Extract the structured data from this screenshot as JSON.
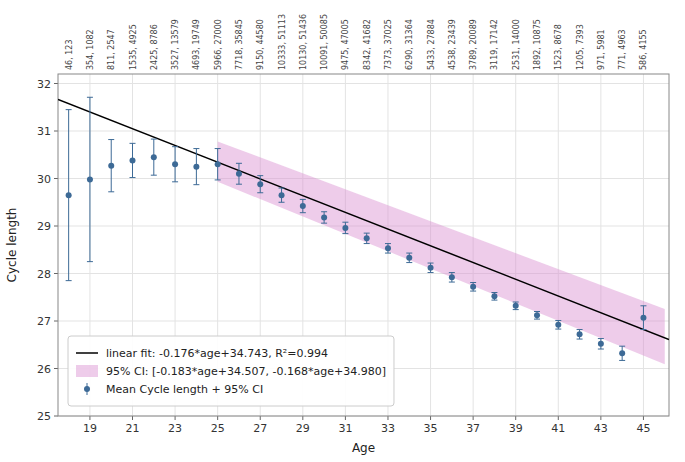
{
  "chart_data": {
    "type": "errorbar",
    "x_label": "Age",
    "y_label": "Cycle length",
    "xlim": [
      17.5,
      46.2
    ],
    "ylim": [
      25.0,
      32.2
    ],
    "xticks": [
      19,
      21,
      23,
      25,
      27,
      29,
      31,
      33,
      35,
      37,
      39,
      41,
      43,
      45
    ],
    "yticks": [
      25,
      26,
      27,
      28,
      29,
      30,
      31,
      32
    ],
    "grid": true,
    "legend": "lower left",
    "series": [
      {
        "name": "linear fit: -0.176*age+34.743, R²=0.994",
        "type": "line",
        "color": "#000000",
        "x": [
          17.5,
          46.2
        ],
        "values": [
          31.663,
          26.6118
        ]
      },
      {
        "name": "95% CI: [-0.183*age+34.507, -0.168*age+34.980]",
        "type": "area",
        "color": "#da8fd0",
        "x": [
          25.0,
          46.0
        ],
        "lower": [
          29.932,
          26.089
        ],
        "upper": [
          30.78,
          27.252
        ]
      },
      {
        "name": "Mean Cycle length + 95% CI",
        "type": "errorbar",
        "color": "#3d6a96",
        "marker": "circle",
        "x": [
          18,
          19,
          20,
          21,
          22,
          23,
          24,
          25,
          26,
          27,
          28,
          29,
          30,
          31,
          32,
          33,
          34,
          35,
          36,
          37,
          38,
          39,
          40,
          41,
          42,
          43,
          44,
          45
        ],
        "values": [
          29.65,
          29.98,
          30.27,
          30.38,
          30.45,
          30.3,
          30.25,
          30.3,
          30.1,
          29.88,
          29.65,
          29.42,
          29.18,
          28.96,
          28.74,
          28.53,
          28.33,
          28.12,
          27.92,
          27.72,
          27.52,
          27.32,
          27.12,
          26.92,
          26.72,
          26.52,
          26.32,
          27.07
        ],
        "ci_lower": [
          27.85,
          28.25,
          29.72,
          30.02,
          30.07,
          29.93,
          29.87,
          29.97,
          29.88,
          29.7,
          29.5,
          29.28,
          29.06,
          28.84,
          28.63,
          28.43,
          28.23,
          28.02,
          27.82,
          27.63,
          27.44,
          27.24,
          27.04,
          26.83,
          26.62,
          26.41,
          26.17,
          26.82
        ],
        "ci_upper": [
          31.45,
          31.71,
          30.82,
          30.74,
          30.83,
          30.67,
          30.63,
          30.63,
          30.32,
          30.06,
          29.8,
          29.56,
          29.3,
          29.08,
          28.85,
          28.63,
          28.43,
          28.22,
          28.02,
          27.81,
          27.6,
          27.4,
          27.2,
          27.01,
          26.82,
          26.63,
          26.47,
          27.32
        ]
      }
    ],
    "annotations": [
      "46, 123",
      "354, 1082",
      "811, 2547",
      "1535, 4925",
      "2425, 8786",
      "3527, 13579",
      "4693, 19749",
      "5966, 27000",
      "7718, 35845",
      "9150, 44580",
      "10333, 51113",
      "10130, 51436",
      "10091, 50085",
      "9475, 47005",
      "8342, 41682",
      "7373, 37025",
      "6290, 31364",
      "5433, 27884",
      "4538, 23439",
      "3789, 20089",
      "3119, 17142",
      "2531, 14000",
      "1892, 10875",
      "1523, 8678",
      "1205, 7393",
      "971, 5981",
      "771, 4963",
      "586, 4155"
    ]
  }
}
